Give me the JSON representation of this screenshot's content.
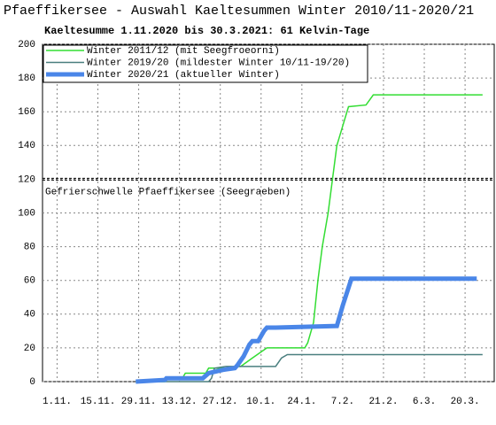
{
  "chart_data": {
    "type": "line",
    "title": "Pfaeffikersee - Auswahl Kaeltesummen Winter 2010/11-2020/21",
    "subtitle": "Kaeltesumme 1.11.2020 bis 30.3.2021: 61 Kelvin-Tage",
    "annotation": {
      "text": "Gefrierschwelle Pfaeffikersee (Seegraeben)",
      "value": 120
    },
    "xlim": [
      -5,
      150
    ],
    "xticks": [
      {
        "value": 0,
        "label": "1.11."
      },
      {
        "value": 14,
        "label": "15.11."
      },
      {
        "value": 28,
        "label": "29.11."
      },
      {
        "value": 42,
        "label": "13.12."
      },
      {
        "value": 56,
        "label": "27.12."
      },
      {
        "value": 70,
        "label": "10.1."
      },
      {
        "value": 84,
        "label": "24.1."
      },
      {
        "value": 98,
        "label": "7.2."
      },
      {
        "value": 112,
        "label": "21.2."
      },
      {
        "value": 126,
        "label": "6.3."
      },
      {
        "value": 140,
        "label": "20.3."
      }
    ],
    "ylim": [
      0,
      200
    ],
    "yticks": [
      0,
      20,
      40,
      60,
      80,
      100,
      120,
      140,
      160,
      180,
      200
    ],
    "grid": true,
    "legend": "top-left",
    "series": [
      {
        "name": "Winter 2011/12 (mit Seegfroeorni)",
        "color": "#33dd33",
        "width": 1.5,
        "x": [
          27,
          37,
          38,
          43,
          44,
          51,
          52,
          60,
          62,
          63,
          67,
          72,
          85,
          86,
          88,
          89.5,
          91,
          93,
          96,
          100,
          106,
          108.5,
          146
        ],
        "values": [
          0,
          0,
          2,
          2,
          5,
          5,
          8,
          8,
          9,
          9,
          14,
          20,
          20,
          23,
          35,
          60,
          80,
          100,
          140,
          163,
          164,
          170,
          170
        ]
      },
      {
        "name": "Winter 2019/20 (mildester Winter 10/11-19/20)",
        "color": "#4a7f7f",
        "width": 1.5,
        "x": [
          27,
          52,
          53,
          54,
          58,
          75,
          77,
          79,
          146
        ],
        "values": [
          0,
          0,
          2,
          8,
          9,
          9,
          14,
          16,
          16
        ]
      },
      {
        "name": "Winter 2020/21 (aktueller Winter)",
        "color": "#4a86e8",
        "width": 5,
        "x": [
          27,
          37,
          37.5,
          50,
          52,
          57,
          61,
          62,
          64,
          66,
          67,
          69,
          71,
          72,
          75,
          96,
          98,
          101,
          144
        ],
        "values": [
          0,
          1,
          2,
          2,
          5,
          7,
          8,
          10,
          15,
          22,
          24,
          24,
          30,
          32,
          32,
          33,
          45,
          61,
          61
        ]
      }
    ]
  }
}
